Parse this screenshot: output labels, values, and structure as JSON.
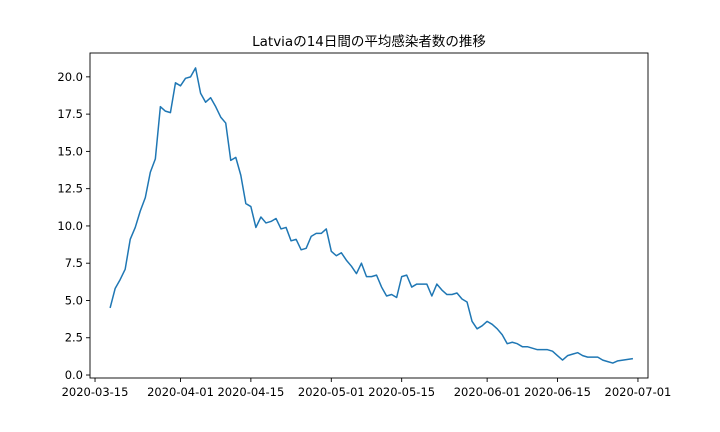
{
  "chart_data": {
    "type": "line",
    "title": "Latviaの14日間の平均感染者数の推移",
    "xlabel": "",
    "ylabel": "",
    "xlim": [
      "2020-03-14",
      "2020-07-03"
    ],
    "ylim": [
      -0.2,
      21.6
    ],
    "xticks": [
      "2020-03-15",
      "2020-04-01",
      "2020-04-15",
      "2020-05-01",
      "2020-05-15",
      "2020-06-01",
      "2020-06-15",
      "2020-07-01"
    ],
    "yticks": [
      0.0,
      2.5,
      5.0,
      7.5,
      10.0,
      12.5,
      15.0,
      17.5,
      20.0
    ],
    "ytick_labels": [
      "0.0",
      "2.5",
      "5.0",
      "7.5",
      "10.0",
      "12.5",
      "15.0",
      "17.5",
      "20.0"
    ],
    "grid": false,
    "legend": "none",
    "colors": {
      "line": "#1f77b4",
      "axes": "#000000"
    },
    "series": [
      {
        "name": "",
        "x": [
          "2020-03-18",
          "2020-03-19",
          "2020-03-20",
          "2020-03-21",
          "2020-03-22",
          "2020-03-23",
          "2020-03-24",
          "2020-03-25",
          "2020-03-26",
          "2020-03-27",
          "2020-03-28",
          "2020-03-29",
          "2020-03-30",
          "2020-03-31",
          "2020-04-01",
          "2020-04-02",
          "2020-04-03",
          "2020-04-04",
          "2020-04-05",
          "2020-04-06",
          "2020-04-07",
          "2020-04-08",
          "2020-04-09",
          "2020-04-10",
          "2020-04-11",
          "2020-04-12",
          "2020-04-13",
          "2020-04-14",
          "2020-04-15",
          "2020-04-16",
          "2020-04-17",
          "2020-04-18",
          "2020-04-19",
          "2020-04-20",
          "2020-04-21",
          "2020-04-22",
          "2020-04-23",
          "2020-04-24",
          "2020-04-25",
          "2020-04-26",
          "2020-04-27",
          "2020-04-28",
          "2020-04-29",
          "2020-04-30",
          "2020-05-01",
          "2020-05-02",
          "2020-05-03",
          "2020-05-04",
          "2020-05-05",
          "2020-05-06",
          "2020-05-07",
          "2020-05-08",
          "2020-05-09",
          "2020-05-10",
          "2020-05-11",
          "2020-05-12",
          "2020-05-13",
          "2020-05-14",
          "2020-05-15",
          "2020-05-16",
          "2020-05-17",
          "2020-05-18",
          "2020-05-19",
          "2020-05-20",
          "2020-05-21",
          "2020-05-22",
          "2020-05-23",
          "2020-05-24",
          "2020-05-25",
          "2020-05-26",
          "2020-05-27",
          "2020-05-28",
          "2020-05-29",
          "2020-05-30",
          "2020-05-31",
          "2020-06-01",
          "2020-06-02",
          "2020-06-03",
          "2020-06-04",
          "2020-06-05",
          "2020-06-06",
          "2020-06-07",
          "2020-06-08",
          "2020-06-09",
          "2020-06-10",
          "2020-06-11",
          "2020-06-12",
          "2020-06-13",
          "2020-06-14",
          "2020-06-15",
          "2020-06-16",
          "2020-06-17",
          "2020-06-18",
          "2020-06-19",
          "2020-06-20",
          "2020-06-21",
          "2020-06-22",
          "2020-06-23",
          "2020-06-24",
          "2020-06-25",
          "2020-06-26",
          "2020-06-27",
          "2020-06-28",
          "2020-06-29",
          "2020-06-30"
        ],
        "values": [
          4.5,
          5.8,
          6.4,
          7.1,
          9.1,
          9.9,
          11.0,
          11.9,
          13.6,
          14.5,
          18.0,
          17.7,
          17.6,
          19.6,
          19.4,
          19.9,
          20.0,
          20.6,
          18.9,
          18.3,
          18.6,
          18.0,
          17.3,
          16.9,
          14.4,
          14.6,
          13.4,
          11.5,
          11.3,
          9.9,
          10.6,
          10.2,
          10.3,
          10.5,
          9.8,
          9.9,
          9.0,
          9.1,
          8.4,
          8.5,
          9.3,
          9.5,
          9.5,
          9.8,
          8.3,
          8.0,
          8.2,
          7.7,
          7.3,
          6.8,
          7.5,
          6.6,
          6.6,
          6.7,
          5.9,
          5.3,
          5.4,
          5.2,
          6.6,
          6.7,
          5.9,
          6.1,
          6.1,
          6.1,
          5.3,
          6.1,
          5.7,
          5.4,
          5.4,
          5.5,
          5.1,
          4.9,
          3.6,
          3.1,
          3.3,
          3.6,
          3.4,
          3.1,
          2.7,
          2.1,
          2.2,
          2.1,
          1.9,
          1.9,
          1.8,
          1.7,
          1.7,
          1.7,
          1.6,
          1.3,
          1.0,
          1.3,
          1.4,
          1.5,
          1.3,
          1.2,
          1.2,
          1.2,
          1.0,
          0.9,
          0.8,
          0.95,
          1.0,
          1.05,
          1.1
        ]
      }
    ]
  }
}
